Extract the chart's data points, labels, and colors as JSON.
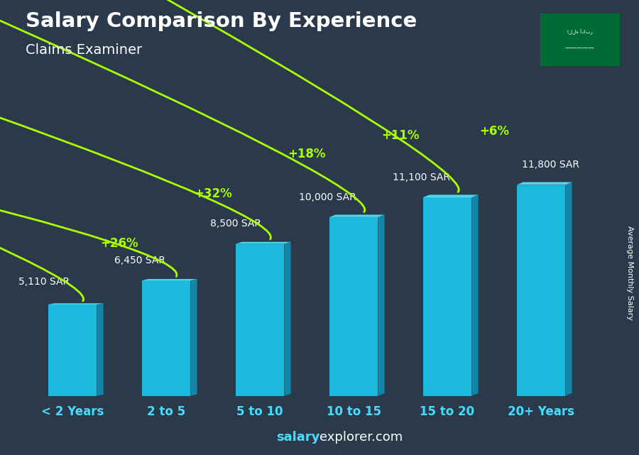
{
  "title": "Salary Comparison By Experience",
  "subtitle": "Claims Examiner",
  "ylabel": "Average Monthly Salary",
  "categories": [
    "< 2 Years",
    "2 to 5",
    "5 to 10",
    "10 to 15",
    "15 to 20",
    "20+ Years"
  ],
  "values": [
    5110,
    6450,
    8500,
    10000,
    11100,
    11800
  ],
  "labels": [
    "5,110 SAR",
    "6,450 SAR",
    "8,500 SAR",
    "10,000 SAR",
    "11,100 SAR",
    "11,800 SAR"
  ],
  "pct_changes": [
    "+26%",
    "+32%",
    "+18%",
    "+11%",
    "+6%"
  ],
  "bar_color_front": "#1ac8ed",
  "bar_color_side": "#0e8fb5",
  "bar_color_top": "#55ddf5",
  "bg_color": "#2b3a4a",
  "title_color": "#ffffff",
  "subtitle_color": "#ffffff",
  "label_color": "#ffffff",
  "pct_color": "#aaff00",
  "tick_color": "#44ddff",
  "arrow_color": "#aaff00",
  "footer_bold_color": "#44ddff",
  "ylim": [
    0,
    14000
  ]
}
